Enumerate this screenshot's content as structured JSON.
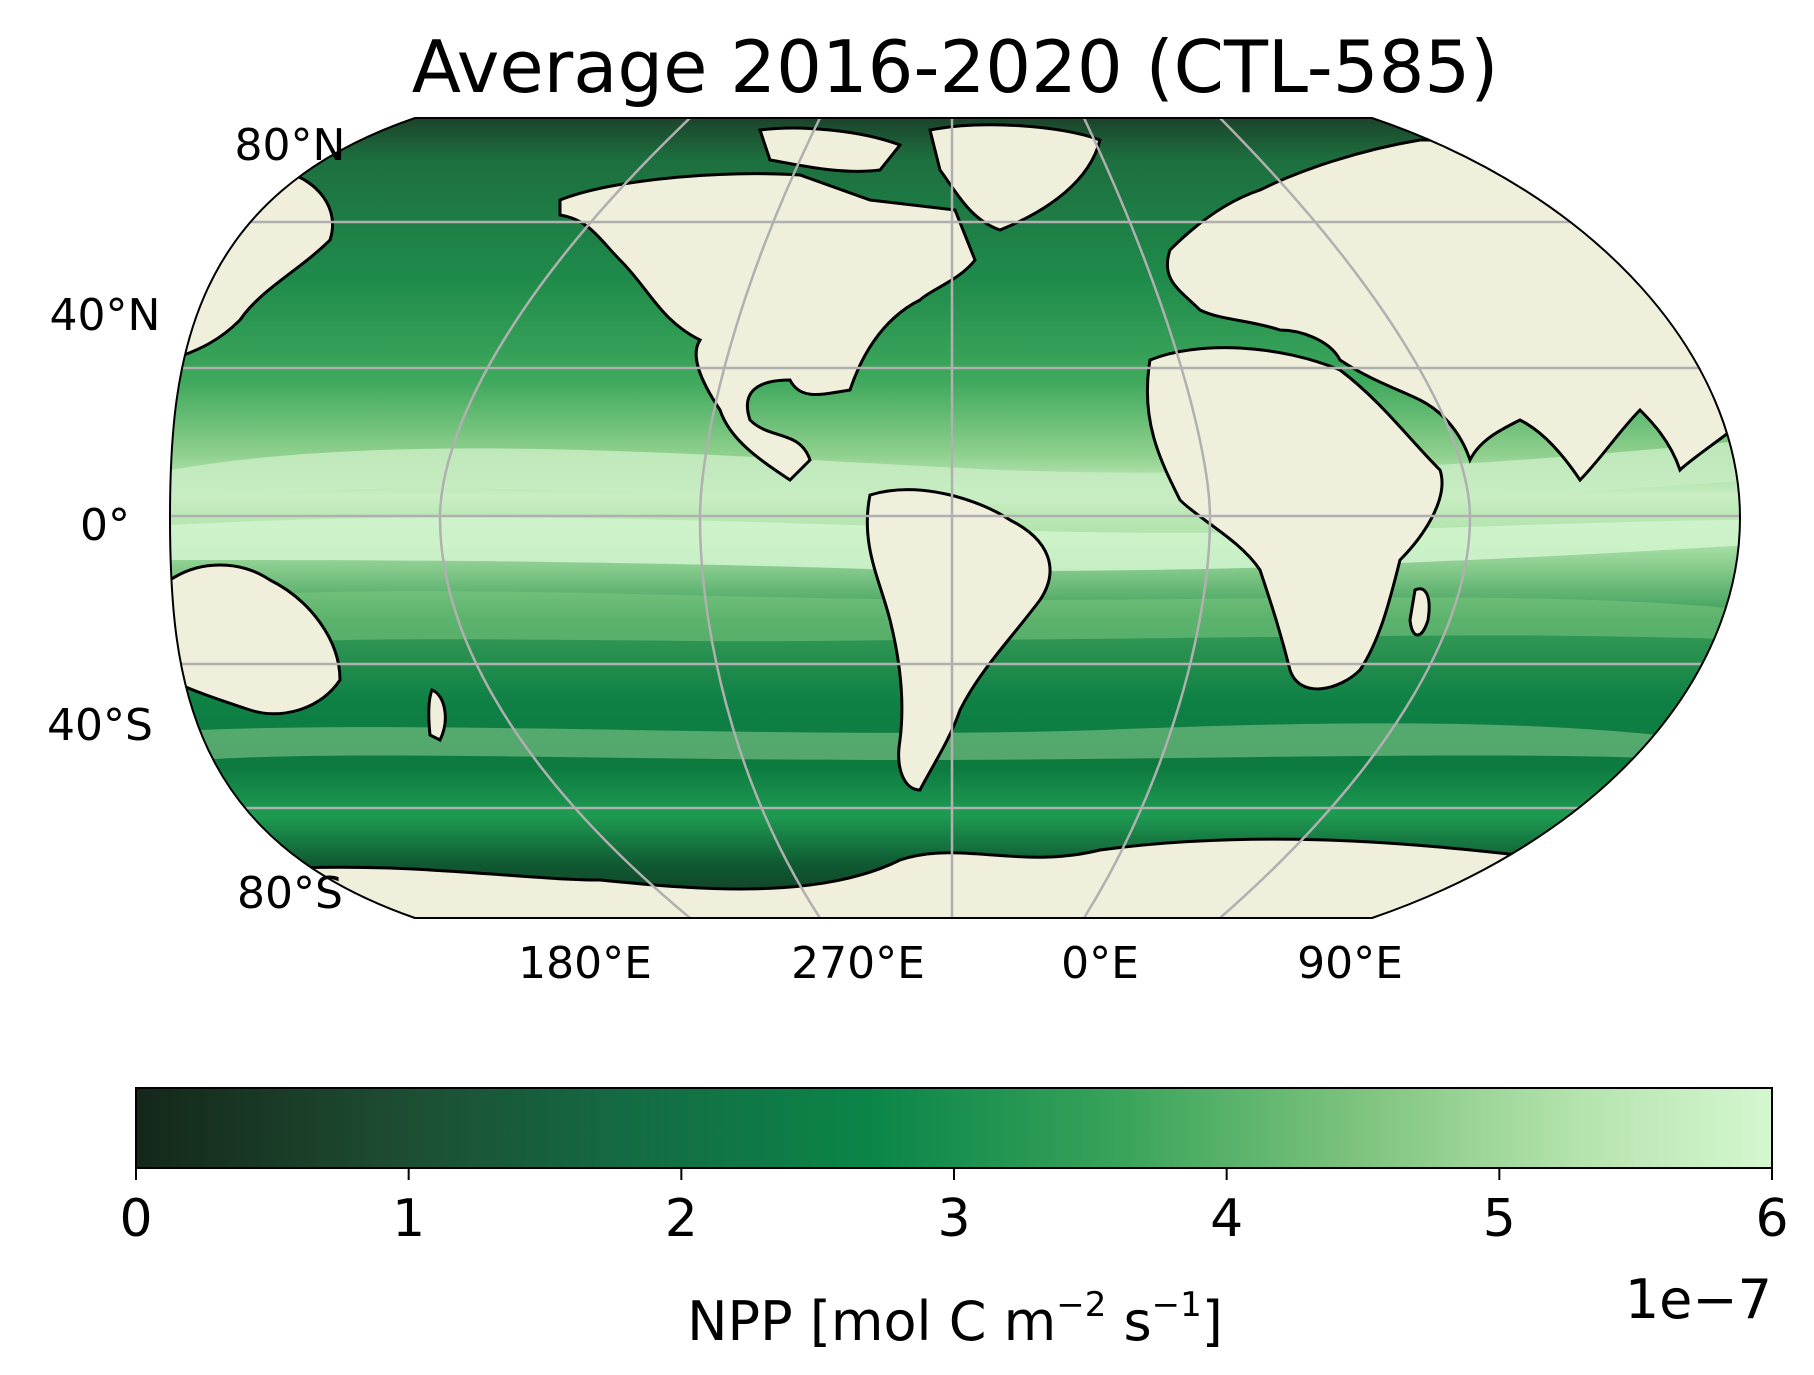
{
  "title": "Average 2016-2020 (CTL-585)",
  "colors": {
    "land": "#efefdc",
    "coast": "#000000",
    "grid": "#b0b0b0",
    "ocean_high": "#d3f5cf",
    "ocean_mid": "#0a8a45",
    "ocean_low": "#14271a"
  },
  "lat_labels": [
    "80°N",
    "40°N",
    "0°",
    "40°S",
    "80°S"
  ],
  "lon_labels": [
    "180°E",
    "270°E",
    "0°E",
    "90°E"
  ],
  "colorbar": {
    "ticks": [
      "0",
      "1",
      "2",
      "3",
      "4",
      "5",
      "6"
    ],
    "label_main": "NPP [mol C m",
    "label_exp1": "−2",
    "label_mid": " s",
    "label_exp2": "−1",
    "label_end": "]",
    "multiplier": "1e−7",
    "colormap": "Greens_r",
    "range": [
      0,
      6
    ]
  }
}
